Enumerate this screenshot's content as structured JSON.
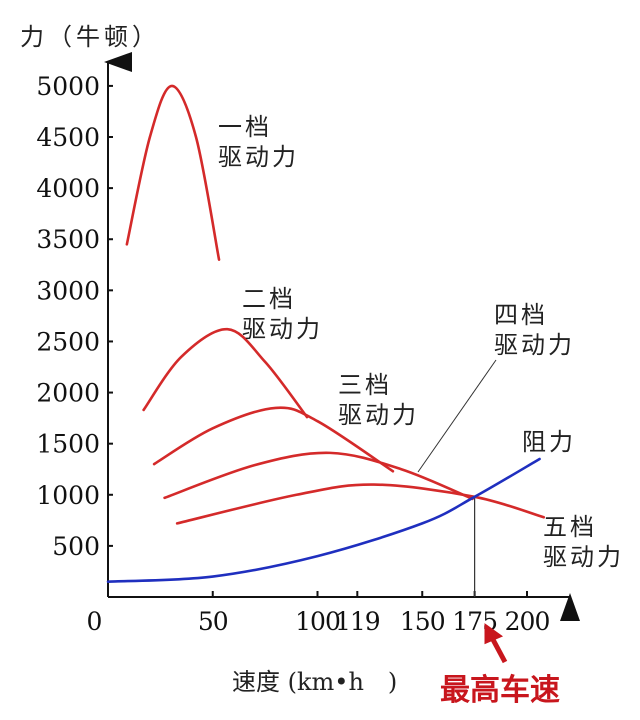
{
  "chart_data": {
    "type": "line",
    "ylabel": "力（牛顿）",
    "xlabel": "速度 (km•h　)",
    "xlim": [
      0,
      215
    ],
    "ylim": [
      0,
      5300
    ],
    "x_ticks": [
      0,
      50,
      100,
      119,
      150,
      175,
      200
    ],
    "y_ticks": [
      500,
      1000,
      1500,
      2000,
      2500,
      3000,
      3500,
      4000,
      4500,
      5000
    ],
    "grid": false,
    "series": [
      {
        "name": "一档驱动力",
        "color": "#d42a2a",
        "x": [
          9,
          20,
          30.5,
          42,
          53
        ],
        "y": [
          3450,
          4500,
          5000,
          4500,
          3300
        ]
      },
      {
        "name": "二档驱动力",
        "color": "#d42a2a",
        "x": [
          17,
          35,
          57,
          75,
          95
        ],
        "y": [
          1830,
          2350,
          2620,
          2300,
          1760
        ]
      },
      {
        "name": "三档驱动力",
        "color": "#d42a2a",
        "x": [
          22,
          50,
          80,
          100,
          136
        ],
        "y": [
          1300,
          1650,
          1850,
          1720,
          1230
        ]
      },
      {
        "name": "四档驱动力",
        "color": "#d42a2a",
        "x": [
          27,
          70,
          106,
          140,
          174
        ],
        "y": [
          970,
          1290,
          1410,
          1250,
          960
        ]
      },
      {
        "name": "五档驱动力",
        "color": "#d42a2a",
        "x": [
          33,
          90,
          127,
          175,
          208
        ],
        "y": [
          720,
          1000,
          1100,
          980,
          780
        ]
      },
      {
        "name": "阻力",
        "color": "#1f2fbf",
        "x": [
          0,
          50,
          100,
          150,
          175,
          206
        ],
        "y": [
          150,
          200,
          400,
          720,
          980,
          1350
        ]
      }
    ],
    "annotations": {
      "max_speed_x": 175,
      "max_speed_label": "最高车速"
    }
  },
  "labels": {
    "gear1": "一档\n驱动力",
    "gear2": "二档\n驱动力",
    "gear3": "三档\n驱动力",
    "gear4": "四档\n驱动力",
    "gear5": "五档\n驱动力",
    "resistance": "阻力"
  }
}
